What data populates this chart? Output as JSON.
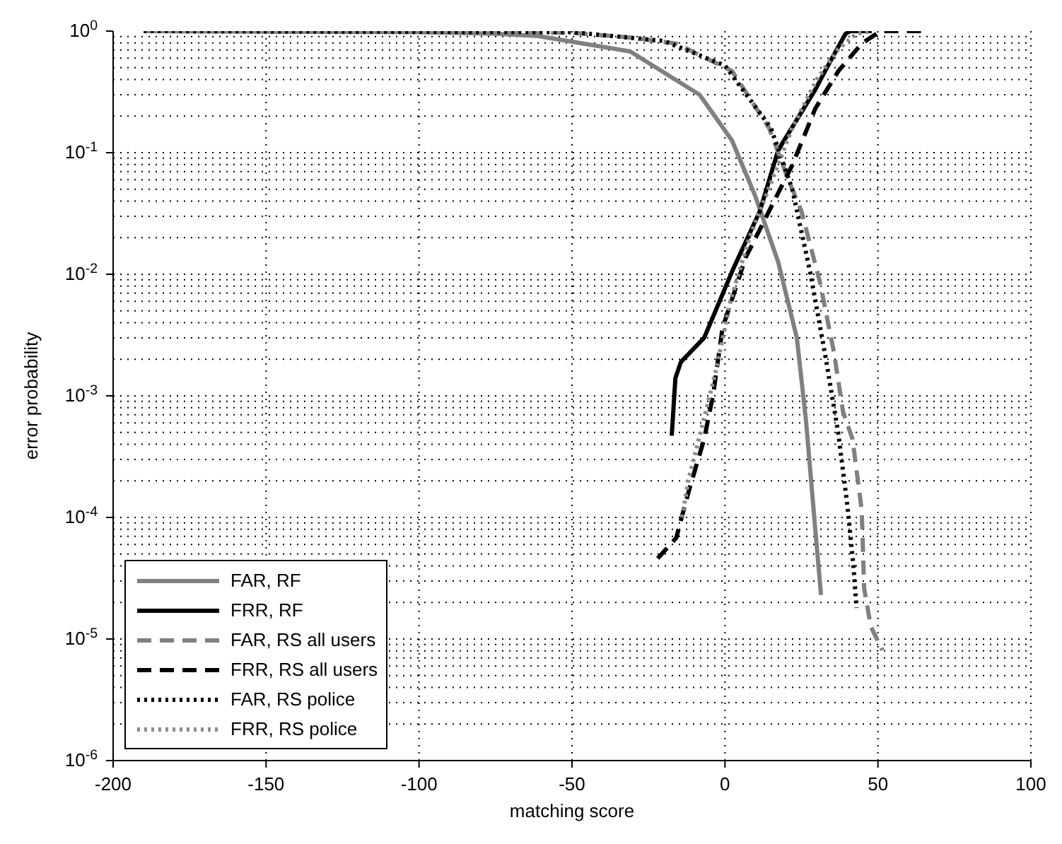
{
  "chart_data": {
    "type": "line",
    "xlabel": "matching score",
    "ylabel": "error probability",
    "log": "y",
    "xlim": [
      -200,
      100
    ],
    "xticks": [
      -200,
      -150,
      -100,
      -50,
      0,
      50,
      100
    ],
    "ylim": [
      1e-06,
      1
    ],
    "yticks": [
      {
        "value": 1e-06,
        "label": "10$^{-6}$"
      },
      {
        "value": 1e-05,
        "label": "10$^{-5}$"
      },
      {
        "value": 0.0001,
        "label": "10$^{-4}$"
      },
      {
        "value": 0.001,
        "label": "10$^{-3}$"
      },
      {
        "value": 0.01,
        "label": "10$^{-2}$"
      },
      {
        "value": 0.1,
        "label": "10$^{-1}$"
      },
      {
        "value": 1,
        "label": "10$^{0}$"
      }
    ],
    "grid": true,
    "legend": "bottom left",
    "marker": "none",
    "series": [
      {
        "name": "FAR, RF",
        "color": "#808080",
        "line_style": "solid",
        "x": [
          -190,
          -100,
          -75,
          -61,
          -31,
          -8.3,
          2.3,
          9.9,
          17.4,
          23.5,
          26.5,
          29.5,
          31.4
        ],
        "values": [
          1,
          0.98,
          0.95,
          0.91,
          0.68,
          0.3,
          0.126,
          0.044,
          0.0126,
          0.003,
          0.00062,
          8.1e-05,
          2.3e-05
        ]
      },
      {
        "name": "FRR, RF",
        "color": "#000000",
        "line_style": "solid",
        "x": [
          -17.4,
          -16.2,
          -14.4,
          -6.8,
          2.3,
          11.4,
          17.4,
          29.5,
          35,
          39.4,
          41,
          48
        ],
        "values": [
          0.00047,
          0.0014,
          0.0019,
          0.003,
          0.0105,
          0.033,
          0.105,
          0.33,
          0.6,
          0.95,
          1,
          1
        ]
      },
      {
        "name": "FAR, RS all users",
        "color": "#808080",
        "line_style": "dashed",
        "x": [
          -190,
          -100,
          -50,
          -30,
          -15.9,
          2.3,
          14.4,
          20.5,
          25,
          31,
          35.6,
          38.6,
          41.7,
          44.7,
          45.5,
          47.7,
          51.5
        ],
        "values": [
          1,
          1,
          0.97,
          0.88,
          0.79,
          0.47,
          0.16,
          0.062,
          0.033,
          0.0087,
          0.0023,
          0.00074,
          0.00044,
          0.000115,
          2.6e-05,
          1.26e-05,
          8.1e-06
        ]
      },
      {
        "name": "FRR, RS all users",
        "color": "#000000",
        "line_style": "dashed",
        "x": [
          -22,
          -15.9,
          -14.4,
          -11.4,
          -6.8,
          -3.8,
          -0.8,
          6.8,
          14.4,
          22,
          29.5,
          37.1,
          44.7,
          50.8,
          66
        ],
        "values": [
          4.6e-05,
          6.8e-05,
          9.5e-05,
          0.00018,
          0.00044,
          0.00105,
          0.0036,
          0.0138,
          0.033,
          0.079,
          0.23,
          0.47,
          0.79,
          1,
          1
        ]
      },
      {
        "name": "FAR, RS police",
        "color": "#000000",
        "line_style": "dotted",
        "x": [
          -190,
          -50,
          -20,
          0,
          15,
          22,
          28,
          33,
          37,
          40,
          42,
          43
        ],
        "values": [
          1,
          0.98,
          0.83,
          0.52,
          0.16,
          0.05,
          0.01,
          0.002,
          0.0005,
          0.000126,
          4e-05,
          1.8e-05
        ]
      },
      {
        "name": "FRR, RS police",
        "color": "#8c8c8c",
        "line_style": "dotted",
        "x": [
          -14,
          -12,
          -7,
          -3,
          2,
          8,
          15,
          22,
          30,
          37,
          43,
          48
        ],
        "values": [
          0.0001,
          0.0002,
          0.00063,
          0.0016,
          0.0063,
          0.02,
          0.056,
          0.16,
          0.4,
          0.71,
          0.95,
          1
        ]
      }
    ]
  }
}
